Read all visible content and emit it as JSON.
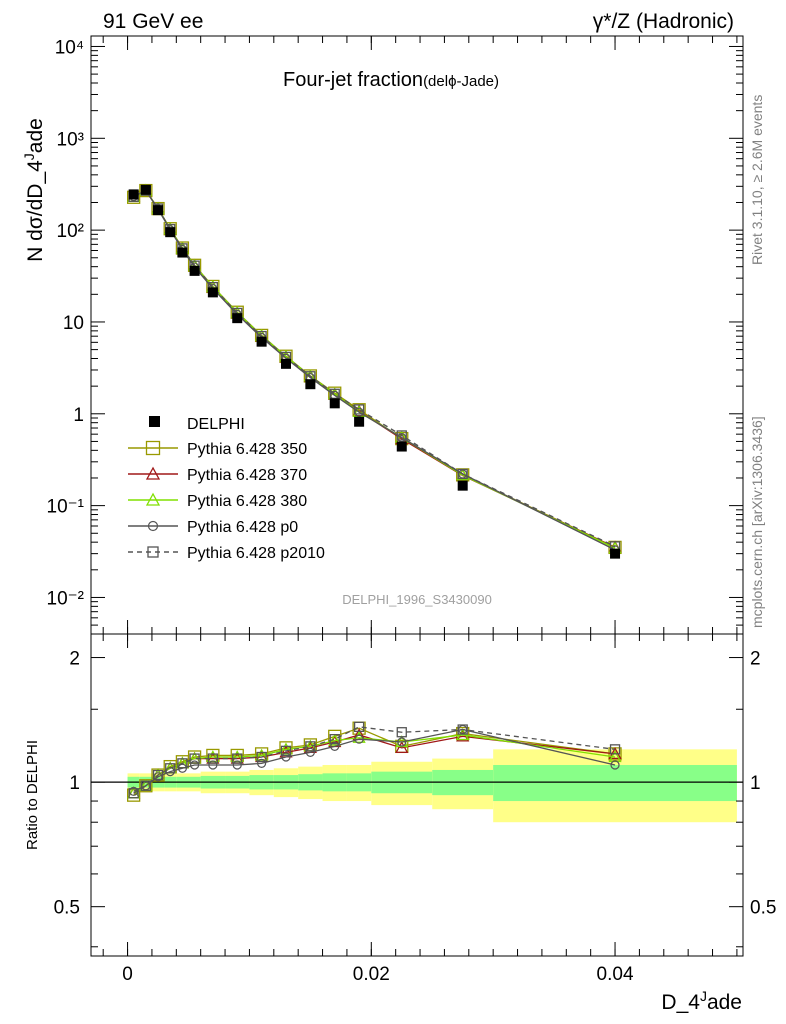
{
  "header": {
    "left": "91 GeV ee",
    "right": "γ*/Z (Hadronic)"
  },
  "side_labels": {
    "rivet": "Rivet 3.1.10, ≥ 2.6M events",
    "mcplots": "mcplots.cern.ch [arXiv:1306.3436]"
  },
  "chart_data": {
    "type": "line",
    "title": "Four-jet fraction",
    "title_suffix": "(delϕ-Jade)",
    "analysis_id": "DELPHI_1996_S3430090",
    "xlabel": "D_4^Jade",
    "ylabel": "N dσ/dD_4^Jade",
    "ratio_ylabel": "Ratio to DELPHI",
    "xlim": [
      -0.003,
      0.0505
    ],
    "ylim": [
      0.004,
      13000
    ],
    "yscale": "log",
    "ratio_ylim": [
      0.38,
      2.28
    ],
    "x_ticks": [
      {
        "v": 0,
        "label": "0"
      },
      {
        "v": 0.02,
        "label": "0.02"
      },
      {
        "v": 0.04,
        "label": "0.04"
      }
    ],
    "y_ticks": [
      {
        "v": 0.01,
        "label": "10⁻²"
      },
      {
        "v": 0.1,
        "label": "10⁻¹"
      },
      {
        "v": 1,
        "label": "1"
      },
      {
        "v": 10,
        "label": "10"
      },
      {
        "v": 100,
        "label": "10²"
      },
      {
        "v": 1000,
        "label": "10³"
      },
      {
        "v": 10000,
        "label": "10⁴"
      }
    ],
    "ratio_ticks": [
      {
        "v": 0.5,
        "label": "0.5"
      },
      {
        "v": 1,
        "label": "1"
      },
      {
        "v": 2,
        "label": "2"
      }
    ],
    "x": [
      0.0005,
      0.0015,
      0.0025,
      0.0035,
      0.0045,
      0.0055,
      0.007,
      0.009,
      0.011,
      0.013,
      0.015,
      0.017,
      0.019,
      0.0225,
      0.0275,
      0.04
    ],
    "bin_edges": [
      0,
      0.001,
      0.002,
      0.003,
      0.004,
      0.005,
      0.006,
      0.008,
      0.01,
      0.012,
      0.014,
      0.016,
      0.018,
      0.02,
      0.025,
      0.03,
      0.05
    ],
    "band_inner": [
      0.03,
      0.03,
      0.03,
      0.03,
      0.03,
      0.03,
      0.035,
      0.035,
      0.04,
      0.04,
      0.045,
      0.05,
      0.05,
      0.06,
      0.07,
      0.1
    ],
    "band_outer": [
      0.05,
      0.05,
      0.05,
      0.05,
      0.05,
      0.05,
      0.06,
      0.06,
      0.07,
      0.08,
      0.09,
      0.1,
      0.1,
      0.12,
      0.14,
      0.2
    ],
    "data": {
      "name": "DELPHI",
      "values": [
        245,
        275,
        165,
        95,
        57,
        36,
        21,
        11,
        6.1,
        3.5,
        2.1,
        1.3,
        0.82,
        0.44,
        0.165,
        0.03
      ]
    },
    "series": [
      {
        "name": "Pythia 6.428 350",
        "color": "#999900",
        "marker": "square",
        "dash": false,
        "ratio": [
          0.93,
          0.98,
          1.04,
          1.09,
          1.12,
          1.15,
          1.16,
          1.16,
          1.17,
          1.21,
          1.23,
          1.29,
          1.35,
          1.22,
          1.31,
          1.17
        ]
      },
      {
        "name": "Pythia 6.428 370",
        "color": "#a01818",
        "marker": "triangle",
        "dash": false,
        "ratio": [
          0.94,
          0.98,
          1.04,
          1.08,
          1.11,
          1.14,
          1.14,
          1.14,
          1.15,
          1.18,
          1.21,
          1.25,
          1.3,
          1.21,
          1.29,
          1.17
        ]
      },
      {
        "name": "Pythia 6.428 380",
        "color": "#80e000",
        "marker": "triangle",
        "dash": false,
        "ratio": [
          0.94,
          0.98,
          1.04,
          1.08,
          1.11,
          1.14,
          1.15,
          1.15,
          1.16,
          1.2,
          1.22,
          1.26,
          1.28,
          1.25,
          1.3,
          1.15
        ]
      },
      {
        "name": "Pythia 6.428 p0",
        "color": "#555555",
        "marker": "circle",
        "dash": false,
        "ratio": [
          0.95,
          0.98,
          1.03,
          1.06,
          1.08,
          1.1,
          1.1,
          1.1,
          1.11,
          1.15,
          1.18,
          1.22,
          1.27,
          1.25,
          1.34,
          1.1
        ]
      },
      {
        "name": "Pythia 6.428 p2010",
        "color": "#555555",
        "marker": "square",
        "dash": true,
        "ratio": [
          0.94,
          0.98,
          1.04,
          1.08,
          1.11,
          1.14,
          1.14,
          1.14,
          1.15,
          1.19,
          1.22,
          1.27,
          1.36,
          1.32,
          1.34,
          1.2
        ]
      }
    ]
  }
}
